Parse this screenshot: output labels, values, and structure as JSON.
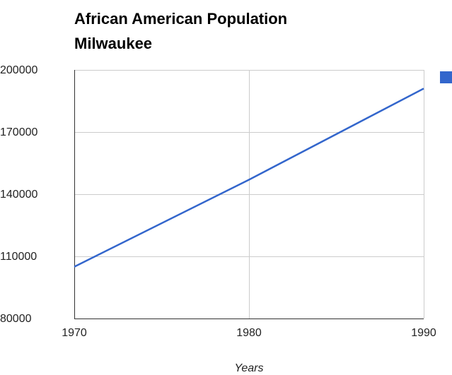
{
  "chart_data": {
    "type": "line",
    "title_lines": [
      "African American Population",
      "Milwaukee"
    ],
    "xlabel": "Years",
    "ylabel": "",
    "x": [
      1970,
      1980,
      1990
    ],
    "x_tick_labels": [
      "1970",
      "1980",
      "1990"
    ],
    "y_tick_labels": [
      "200000",
      "170000",
      "140000",
      "110000",
      "80000"
    ],
    "y_ticks": [
      200000,
      170000,
      140000,
      110000,
      80000
    ],
    "xlim": [
      1970,
      1990
    ],
    "ylim": [
      80000,
      200000
    ],
    "grid": true,
    "legend_position": "right",
    "series": [
      {
        "color": "#3366cc",
        "values": [
          105000,
          147000,
          191000
        ]
      }
    ]
  }
}
